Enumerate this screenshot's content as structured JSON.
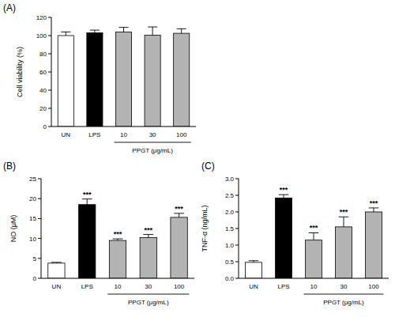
{
  "chart_data": [
    {
      "type": "bar",
      "title": "(A)",
      "y_label": "Cell viability (%)",
      "x_label": "PPGT (μg/mL)",
      "categories": [
        "UN",
        "LPS",
        "10",
        "30",
        "100"
      ],
      "values": [
        100,
        103,
        104,
        100.5,
        102.5
      ],
      "errors": [
        4,
        3,
        5,
        9,
        5
      ],
      "colors": [
        "#ffffff",
        "#000000",
        "#b3b3b3",
        "#b3b3b3",
        "#b3b3b3"
      ],
      "annotations": [
        null,
        null,
        null,
        null,
        null
      ],
      "ylim": [
        0,
        120
      ],
      "yticks": [
        0,
        20,
        40,
        60,
        80,
        100,
        120
      ],
      "grid": false
    },
    {
      "type": "bar",
      "title": "(B)",
      "y_label": "NO (μM)",
      "x_label": "PPGT (μg/mL)",
      "categories": [
        "UN",
        "LPS",
        "10",
        "30",
        "100"
      ],
      "values": [
        3.8,
        18.5,
        9.5,
        10.2,
        15.3
      ],
      "errors": [
        0.2,
        1.4,
        0.4,
        0.8,
        1.0
      ],
      "colors": [
        "#ffffff",
        "#000000",
        "#b3b3b3",
        "#b3b3b3",
        "#b3b3b3"
      ],
      "annotations": [
        null,
        "***",
        "***",
        "***",
        "***"
      ],
      "ylim": [
        0,
        25
      ],
      "yticks": [
        0,
        5,
        10,
        15,
        20,
        25
      ],
      "grid": false
    },
    {
      "type": "bar",
      "title": "(C)",
      "y_label": "TNF-α (ng/mL)",
      "x_label": "PPGT (μg/mL)",
      "categories": [
        "UN",
        "LPS",
        "10",
        "30",
        "100"
      ],
      "values": [
        0.48,
        2.42,
        1.15,
        1.55,
        2.0
      ],
      "errors": [
        0.05,
        0.1,
        0.22,
        0.3,
        0.12
      ],
      "colors": [
        "#ffffff",
        "#000000",
        "#b3b3b3",
        "#b3b3b3",
        "#b3b3b3"
      ],
      "annotations": [
        null,
        "***",
        "***",
        "***",
        "***"
      ],
      "ylim": [
        0,
        3
      ],
      "yticks": [
        {
          "value": 0,
          "label": "0.0"
        },
        {
          "value": 0.5,
          "label": "0.5"
        },
        {
          "value": 1,
          "label": "1.0"
        },
        {
          "value": 1.5,
          "label": "1.5"
        },
        {
          "value": 2,
          "label": "2.0"
        },
        {
          "value": 2.5,
          "label": "2.5"
        },
        {
          "value": 3,
          "label": "3.0"
        }
      ],
      "grid": false
    }
  ]
}
